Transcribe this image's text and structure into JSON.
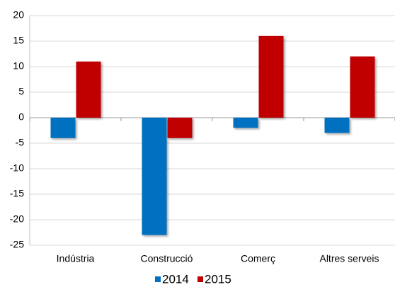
{
  "chart_data": {
    "type": "bar",
    "categories": [
      "Indústria",
      "Construcció",
      "Comerç",
      "Altres serveis"
    ],
    "series": [
      {
        "name": "2014",
        "color": "#0070c0",
        "values": [
          -4,
          -23,
          -2,
          -3
        ]
      },
      {
        "name": "2015",
        "color": "#c00000",
        "values": [
          11,
          -4,
          16,
          12
        ]
      }
    ],
    "ylim": [
      -25,
      20
    ],
    "yticks": [
      -25,
      -20,
      -15,
      -10,
      -5,
      0,
      5,
      10,
      15,
      20
    ],
    "grid": true,
    "legend": "bottom"
  }
}
